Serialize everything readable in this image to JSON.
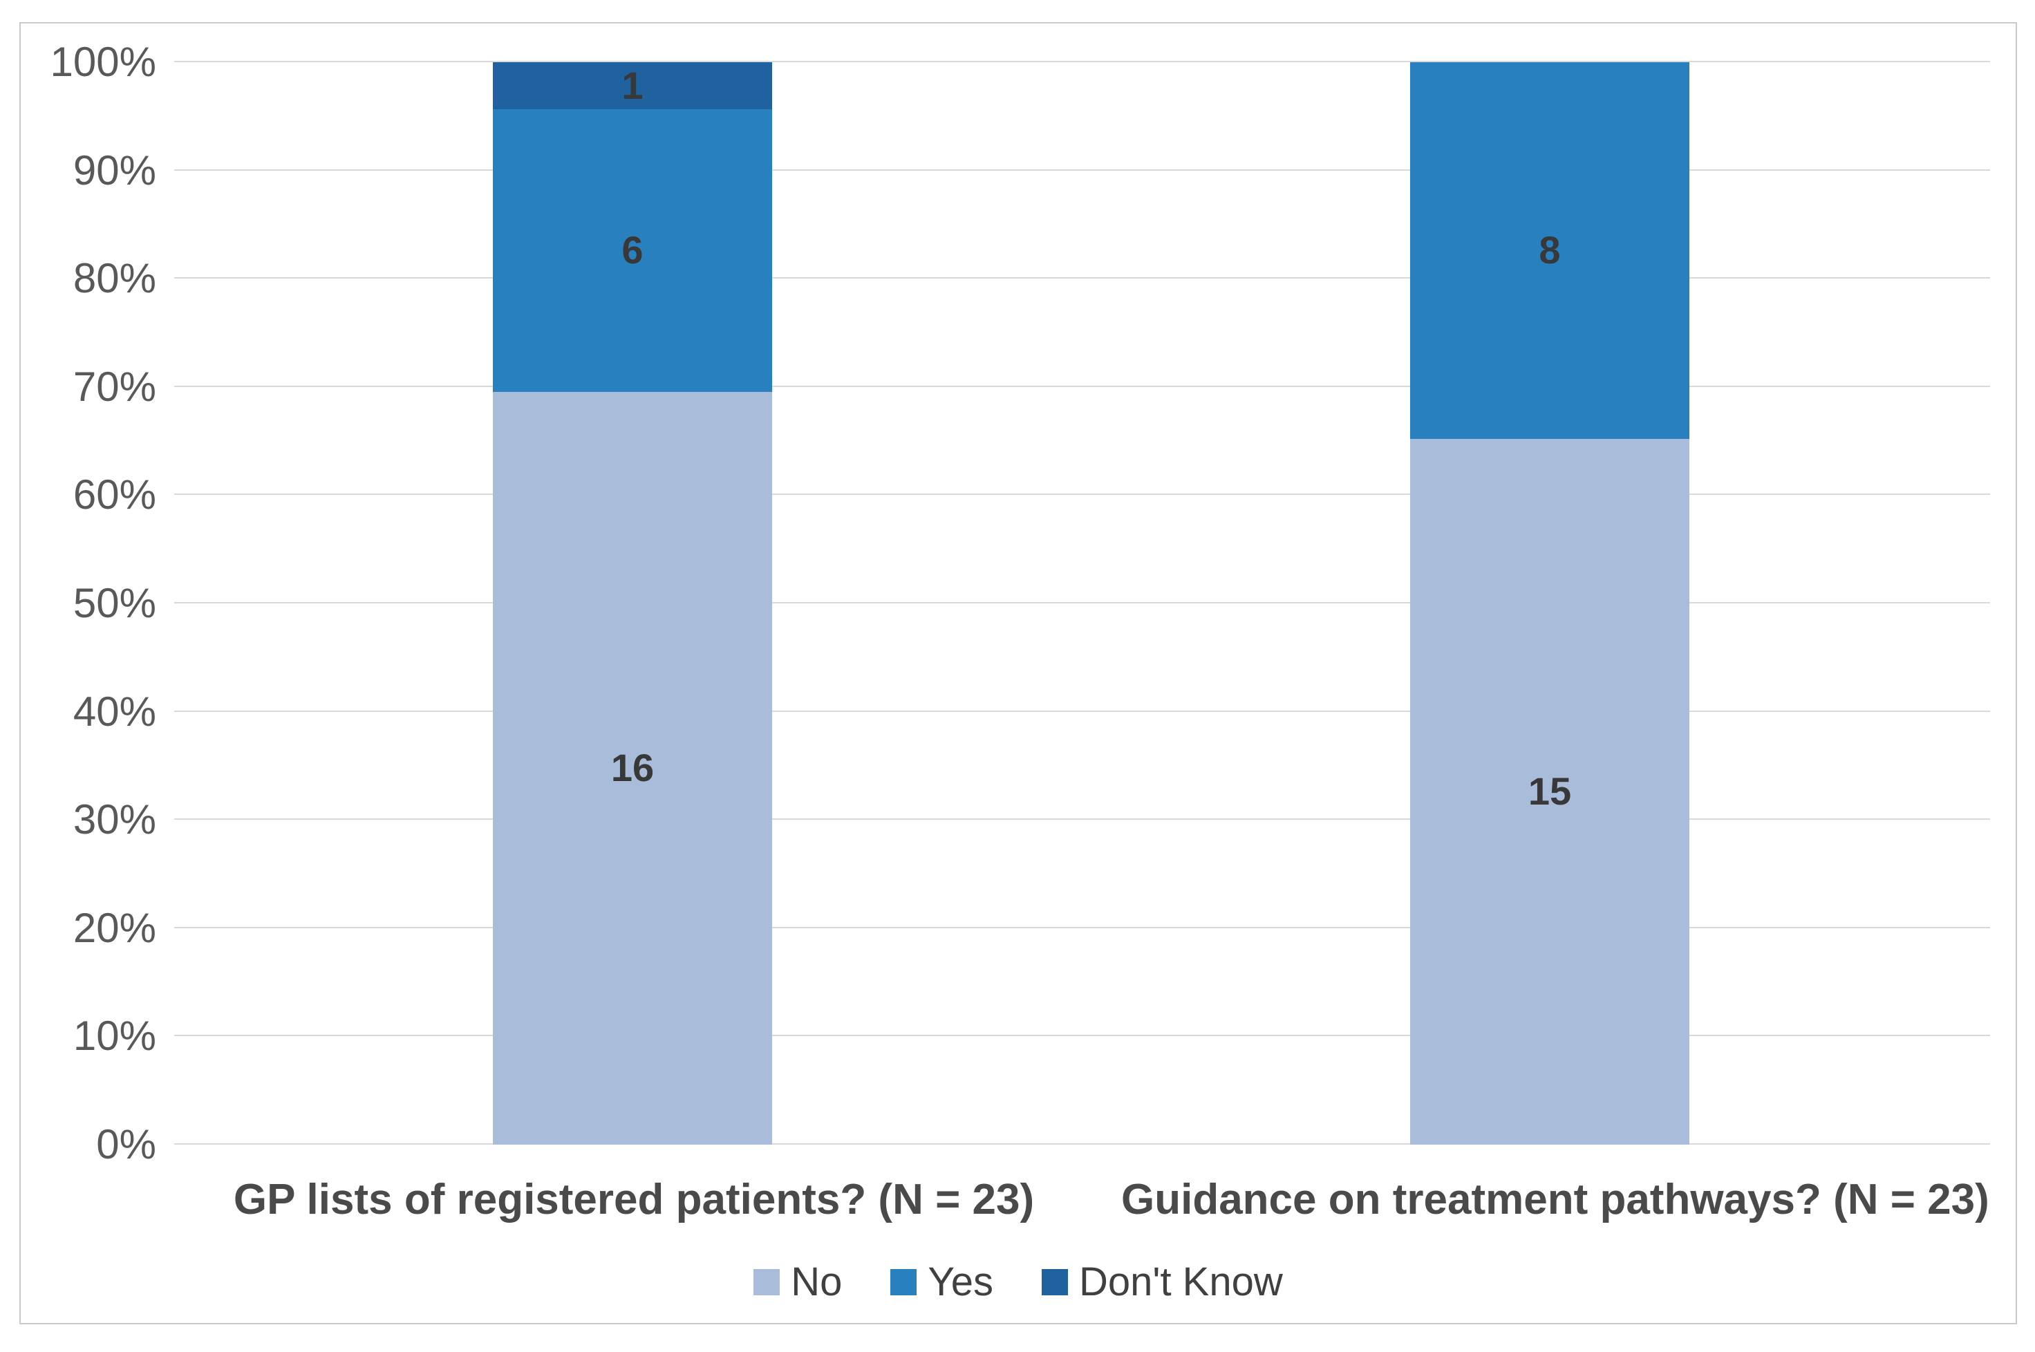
{
  "chart_data": {
    "type": "bar",
    "subtype": "stacked-100-percent",
    "title": "",
    "xlabel": "",
    "ylabel": "",
    "categories": [
      "GP lists of registered patients? (N = 23)",
      "Guidance on treatment pathways? (N = 23)"
    ],
    "series": [
      {
        "name": "No",
        "color": "#A9BDDB",
        "values": [
          16,
          15
        ]
      },
      {
        "name": "Yes",
        "color": "#2980BE",
        "values": [
          6,
          8
        ]
      },
      {
        "name": "Don't Know",
        "color": "#20619F",
        "values": [
          1,
          0
        ]
      }
    ],
    "category_totals": [
      23,
      23
    ],
    "data_labels_shown": [
      [
        "16",
        "6",
        "1"
      ],
      [
        "15",
        "8",
        ""
      ]
    ],
    "yticks": [
      "0%",
      "10%",
      "20%",
      "30%",
      "40%",
      "50%",
      "60%",
      "70%",
      "80%",
      "90%",
      "100%"
    ],
    "ylim": [
      0,
      100
    ],
    "grid": true,
    "legend_position": "bottom",
    "legend_items": [
      "No",
      "Yes",
      "Don't Know"
    ]
  },
  "colors": {
    "series_no": "#A9BDDB",
    "series_yes": "#2980BE",
    "series_dont_know": "#20619F",
    "gridline": "#D9D9D9",
    "frame_border": "#C9C9C9",
    "tick_text": "#595959",
    "category_text": "#4A4A4A",
    "data_label_text": "#383838",
    "legend_text": "#404040",
    "background": "#ffffff"
  }
}
